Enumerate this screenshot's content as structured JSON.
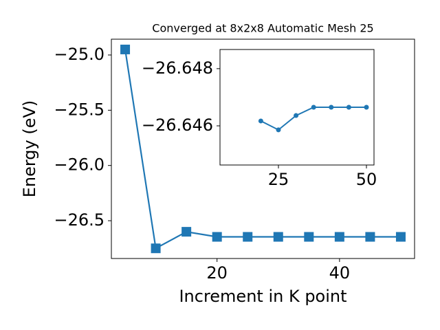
{
  "chart_data": [
    {
      "type": "line",
      "title": "Converged at 8x2x8 Automatic Mesh 25",
      "x_label": "Increment in K point",
      "y_label": "Energy (eV)",
      "x": [
        5,
        10,
        15,
        20,
        25,
        30,
        35,
        40,
        45,
        50
      ],
      "series": [
        {
          "color": "#1f77b4",
          "marker": "square",
          "values": [
            -24.95,
            -26.75,
            -26.6,
            -26.646,
            -26.646,
            -26.646,
            -26.646,
            -26.646,
            -26.646,
            -26.646
          ]
        }
      ],
      "xlim": [
        2.75,
        52.25
      ],
      "xticks": [
        20,
        40
      ],
      "ylim": [
        -26.842,
        -24.857
      ],
      "yticks": [
        {
          "value": -25.0,
          "label": "−25.0"
        },
        {
          "value": -25.5,
          "label": "−25.5"
        },
        {
          "value": -26.0,
          "label": "−26.0"
        },
        {
          "value": -26.5,
          "label": "−26.5"
        }
      ]
    },
    {
      "type": "line",
      "x": [
        20,
        25,
        30,
        35,
        40,
        45,
        50
      ],
      "series": [
        {
          "color": "#1f77b4",
          "marker": "circle",
          "values": [
            -26.64617,
            -26.64586,
            -26.64636,
            -26.64665,
            -26.64665,
            -26.64665,
            -26.64665
          ]
        }
      ],
      "xlim": [
        8.4,
        52.15
      ],
      "xticks": [
        25,
        50
      ],
      "ylim": [
        -26.64463,
        -26.64867
      ],
      "yticks": [
        {
          "value": -26.648,
          "label": "−26.648"
        },
        {
          "value": -26.646,
          "label": "−26.646"
        }
      ]
    }
  ]
}
